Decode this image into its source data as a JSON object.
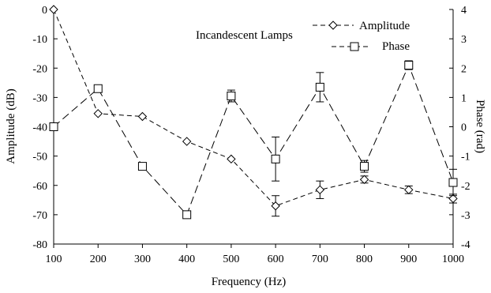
{
  "chart_data": {
    "type": "line",
    "annotation": "Incandescent Lamps",
    "xlabel": "Frequency (Hz)",
    "ylabel": "Amplitude (dB)",
    "y2label": "Phase (rad)",
    "x": [
      100,
      200,
      300,
      400,
      500,
      600,
      700,
      800,
      900,
      1000
    ],
    "xlim": [
      100,
      1000
    ],
    "ylim": [
      -80,
      0
    ],
    "y2lim": [
      -4,
      4
    ],
    "xticks": [
      "100",
      "200",
      "300",
      "400",
      "500",
      "600",
      "700",
      "800",
      "900",
      "1000"
    ],
    "yticks": [
      "0",
      "-10",
      "-20",
      "-30",
      "-40",
      "-50",
      "-60",
      "-70",
      "-80"
    ],
    "y2ticks": [
      "4",
      "3",
      "2",
      "1",
      "0",
      "-1",
      "-2",
      "-3",
      "-4"
    ],
    "grid": false,
    "legend_position": "top-right",
    "series": [
      {
        "name": "Amplitude",
        "axis": "left",
        "marker": "diamond",
        "line": "dashed",
        "values": [
          0,
          -35.5,
          -36.5,
          -45,
          -51,
          -67,
          -61.5,
          -58,
          -61.5,
          -64.5
        ],
        "errors": [
          0,
          0,
          0,
          0,
          0,
          3.5,
          3,
          1.2,
          1.3,
          1.5
        ]
      },
      {
        "name": "Phase",
        "axis": "right",
        "marker": "square",
        "line": "solid",
        "values": [
          0,
          1.3,
          -1.35,
          -3,
          1.05,
          -1.1,
          1.35,
          -1.35,
          2.1,
          -1.9
        ],
        "errors": [
          0,
          0,
          0,
          0,
          0.2,
          0.75,
          0.5,
          0.2,
          0.15,
          0.45
        ]
      }
    ]
  }
}
